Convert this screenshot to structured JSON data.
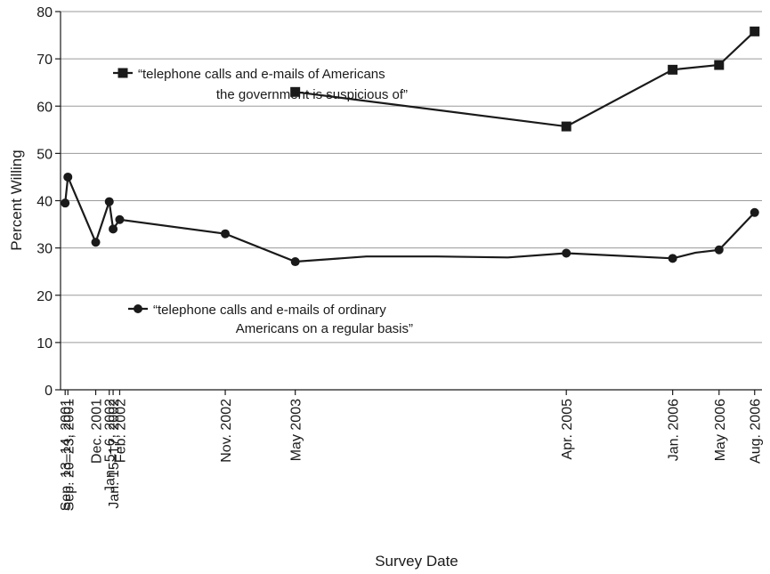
{
  "chart_data": {
    "type": "line",
    "xlabel": "Survey Date",
    "ylabel": "Percent Willing",
    "ylim": [
      0,
      80
    ],
    "yticks": [
      0,
      10,
      20,
      30,
      40,
      50,
      60,
      70,
      80
    ],
    "grid": true,
    "categories": [
      "Sep. 13–14, 2001",
      "Sep. 20–23, 2001",
      "Dec. 2001",
      "Jan. 5–6, 2002",
      "Jan. 15–17, 2002",
      "Feb. 2002",
      "Nov. 2002",
      "May 2003",
      "Apr. 2005",
      "Jan. 2006",
      "May 2006",
      "Aug. 2006"
    ],
    "category_dates": [
      "2001-09-13",
      "2001-09-20",
      "2001-12-01",
      "2002-01-05",
      "2002-01-15",
      "2002-02-01",
      "2002-11-01",
      "2003-05-01",
      "2005-04-01",
      "2006-01-01",
      "2006-05-01",
      "2006-08-01"
    ],
    "x_range": [
      "2001-09-01",
      "2006-08-20"
    ],
    "series": [
      {
        "name": "“telephone calls and e-mails of Americans the government is suspicious of”",
        "legend_lines": [
          "“telephone calls and e-mails of Americans",
          "the government is suspicious of”"
        ],
        "marker": "square",
        "points": [
          {
            "x": "2003-05-01",
            "y": 63,
            "marker": true
          },
          {
            "x": "2005-04-01",
            "y": 55.7,
            "marker": true
          },
          {
            "x": "2006-01-01",
            "y": 67.7,
            "marker": true
          },
          {
            "x": "2006-05-01",
            "y": 68.7,
            "marker": true
          },
          {
            "x": "2006-08-01",
            "y": 75.8,
            "marker": true
          }
        ]
      },
      {
        "name": "“telephone calls and e-mails of ordinary Americans on a regular basis”",
        "legend_lines": [
          "“telephone calls and e-mails of ordinary",
          "Americans on a regular basis”"
        ],
        "marker": "circle",
        "points": [
          {
            "x": "2001-09-13",
            "y": 39.5,
            "marker": true
          },
          {
            "x": "2001-09-20",
            "y": 45,
            "marker": true
          },
          {
            "x": "2001-12-01",
            "y": 31.2,
            "marker": true
          },
          {
            "x": "2002-01-05",
            "y": 39.8,
            "marker": true
          },
          {
            "x": "2002-01-15",
            "y": 34,
            "marker": true
          },
          {
            "x": "2002-02-01",
            "y": 36,
            "marker": true
          },
          {
            "x": "2002-11-01",
            "y": 33,
            "marker": true
          },
          {
            "x": "2003-05-01",
            "y": 27.1,
            "marker": true
          },
          {
            "x": "2003-11-01",
            "y": 28.2,
            "marker": false
          },
          {
            "x": "2004-05-01",
            "y": 28.2,
            "marker": false
          },
          {
            "x": "2004-11-01",
            "y": 28,
            "marker": false
          },
          {
            "x": "2005-04-01",
            "y": 28.9,
            "marker": true
          },
          {
            "x": "2006-01-01",
            "y": 27.8,
            "marker": true
          },
          {
            "x": "2006-03-01",
            "y": 29,
            "marker": false
          },
          {
            "x": "2006-05-01",
            "y": 29.6,
            "marker": true
          },
          {
            "x": "2006-08-01",
            "y": 37.5,
            "marker": true
          }
        ]
      }
    ],
    "legend_placement": "inline"
  }
}
